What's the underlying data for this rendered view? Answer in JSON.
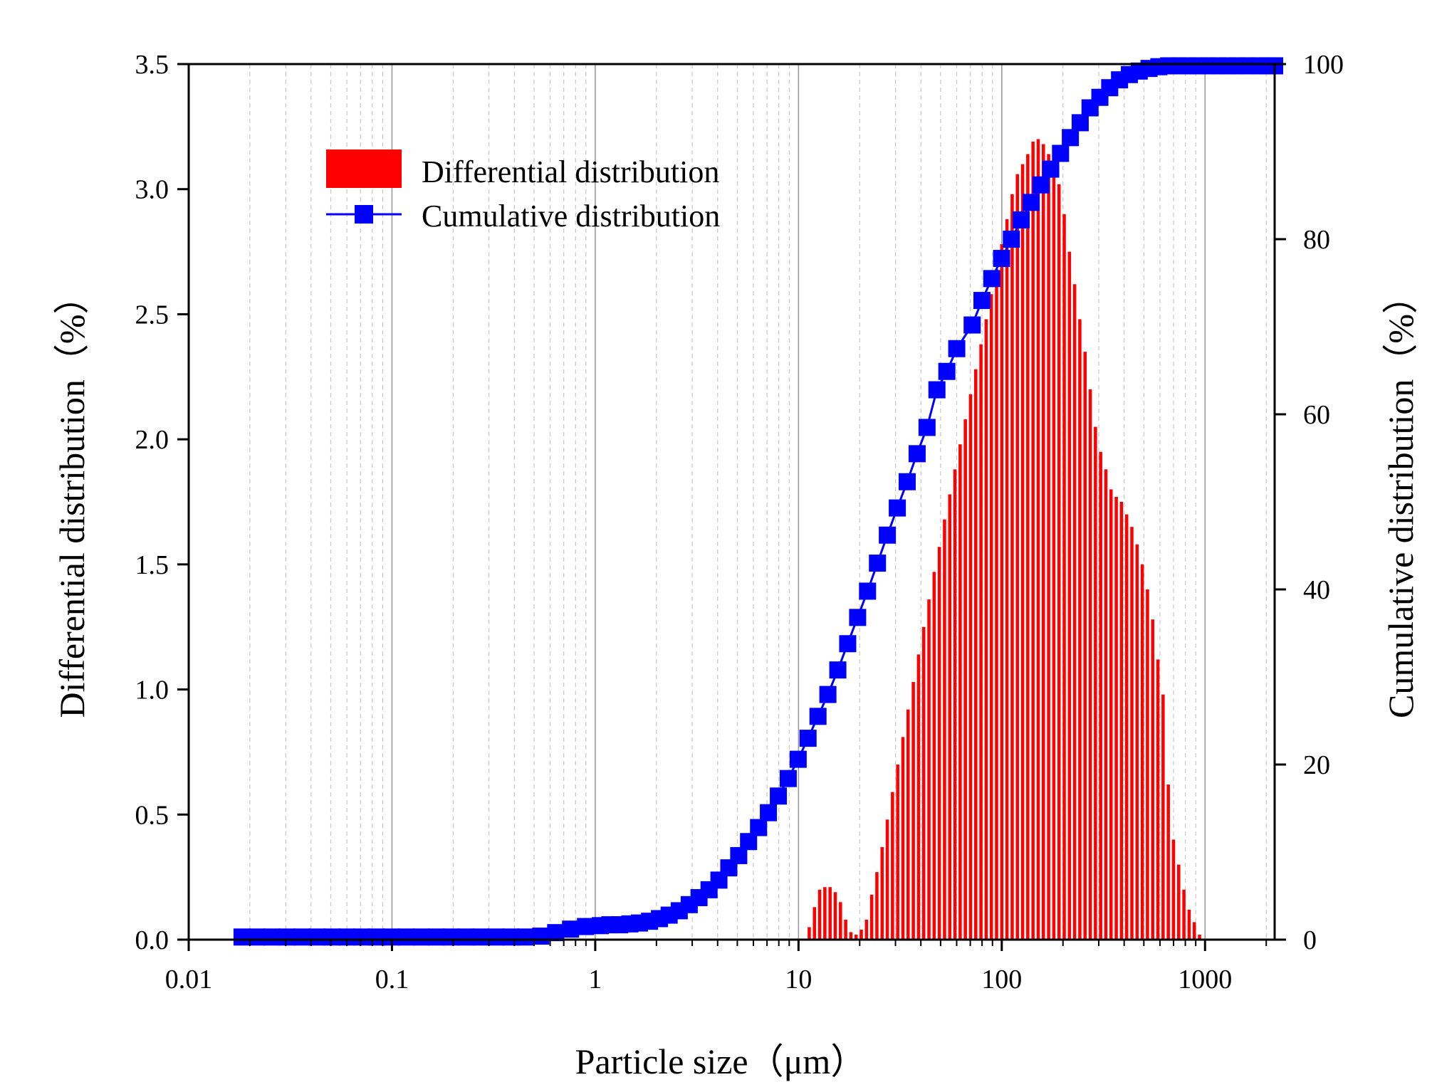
{
  "chart_data": {
    "type": "bar+line",
    "xscale": "log",
    "xlim": [
      0.01,
      2200
    ],
    "xlabel": "Particle size（μm）",
    "ylabel_left": "Differential distribution（%）",
    "ylabel_right": "Cumulative distribution（%）",
    "ylim_left": [
      0,
      3.5
    ],
    "ylim_right": [
      0,
      100
    ],
    "x_tick_labels": [
      "0.01",
      "0.1",
      "1",
      "10",
      "100",
      "1000"
    ],
    "y_left_tick_labels": [
      "0.0",
      "0.5",
      "1.0",
      "1.5",
      "2.0",
      "2.5",
      "3.0",
      "3.5"
    ],
    "y_right_tick_labels": [
      "0",
      "20",
      "40",
      "60",
      "80",
      "100"
    ],
    "grid": "vertical major and minor (log decades)",
    "legend": {
      "position": "top-left",
      "entries": [
        "Differential distribution",
        "Cumulative distribution"
      ]
    },
    "colors": {
      "bars": "#ff0000",
      "cumulative": "#0000ff"
    },
    "x_start": 0.0183,
    "log_step": 0.0256,
    "series": [
      {
        "name": "Differential distribution",
        "type": "bar",
        "values": [
          0,
          0,
          0,
          0,
          0,
          0,
          0,
          0,
          0,
          0,
          0,
          0,
          0,
          0,
          0,
          0,
          0,
          0,
          0,
          0,
          0,
          0,
          0,
          0,
          0,
          0,
          0,
          0,
          0,
          0,
          0,
          0,
          0,
          0,
          0,
          0,
          0,
          0,
          0,
          0,
          0,
          0,
          0,
          0,
          0,
          0,
          0,
          0,
          0,
          0,
          0,
          0,
          0,
          0,
          0,
          0,
          0,
          0,
          0,
          0,
          0,
          0,
          0,
          0,
          0,
          0,
          0,
          0,
          0,
          0,
          0,
          0,
          0,
          0,
          0,
          0,
          0,
          0,
          0,
          0,
          0,
          0,
          0,
          0,
          0,
          0,
          0,
          0,
          0,
          0,
          0,
          0,
          0,
          0,
          0,
          0,
          0,
          0,
          0,
          0,
          0,
          0,
          0,
          0,
          0,
          0,
          0,
          0,
          0,
          0.05,
          0.13,
          0.2,
          0.21,
          0.21,
          0.19,
          0.15,
          0.08,
          0.03,
          0.02,
          0.04,
          0.08,
          0.18,
          0.27,
          0.37,
          0.48,
          0.59,
          0.7,
          0.81,
          0.92,
          1.03,
          1.14,
          1.25,
          1.36,
          1.47,
          1.57,
          1.68,
          1.78,
          1.88,
          1.98,
          2.08,
          2.18,
          2.28,
          2.38,
          2.48,
          2.58,
          2.68,
          2.78,
          2.88,
          2.98,
          3.06,
          3.1,
          3.14,
          3.19,
          3.2,
          3.18,
          3.14,
          3.1,
          3.02,
          2.9,
          2.75,
          2.62,
          2.48,
          2.35,
          2.2,
          2.05,
          1.95,
          1.88,
          1.8,
          1.77,
          1.75,
          1.7,
          1.65,
          1.58,
          1.5,
          1.4,
          1.28,
          1.12,
          0.98,
          0.62,
          0.4,
          0.3,
          0.2,
          0.12,
          0.07,
          0.02
        ]
      },
      {
        "name": "Cumulative distribution",
        "type": "line",
        "marker_x": [
          0.0183,
          0.0217,
          0.0257,
          0.0305,
          0.0361,
          0.0427,
          0.0506,
          0.0599,
          0.0709,
          0.084,
          0.0995,
          0.1178,
          0.1395,
          0.1652,
          0.1956,
          0.2316,
          0.2743,
          0.3248,
          0.3846,
          0.4554,
          0.5393,
          0.6386,
          0.7562,
          0.8955,
          1.06,
          1.18,
          1.32,
          1.48,
          1.65,
          1.85,
          2.07,
          2.31,
          2.59,
          2.9,
          3.24,
          3.63,
          4.06,
          4.54,
          5.08,
          5.68,
          6.36,
          7.11,
          7.96,
          8.9,
          9.96,
          11.14,
          12.47,
          13.95,
          15.61,
          17.46,
          19.54,
          21.86,
          24.46,
          27.36,
          30.62,
          34.25,
          38.33,
          42.88,
          47.97,
          53.67,
          60.05,
          71.5,
          79.9,
          89.3,
          99.8,
          111.5,
          124.6,
          139.3,
          155.7,
          174.1,
          194.6,
          217.5,
          243.1,
          271.8,
          303.8,
          339.6,
          379.6,
          424.4,
          474.4,
          530.3,
          592.8,
          662.6,
          740.7,
          828,
          925.5,
          1035,
          1156,
          1293,
          1445,
          1615,
          1806,
          2018,
          2200
        ],
        "marker_y": [
          0.3,
          0.3,
          0.3,
          0.3,
          0.3,
          0.3,
          0.3,
          0.3,
          0.3,
          0.3,
          0.3,
          0.3,
          0.3,
          0.3,
          0.3,
          0.3,
          0.3,
          0.3,
          0.3,
          0.3,
          0.4,
          0.8,
          1.2,
          1.5,
          1.6,
          1.7,
          1.7,
          1.8,
          1.9,
          2.1,
          2.4,
          2.8,
          3.3,
          4,
          4.8,
          5.7,
          6.8,
          8.2,
          9.6,
          11.2,
          12.8,
          14.5,
          16.4,
          18.4,
          20.6,
          23,
          25.5,
          28,
          30.8,
          33.8,
          36.8,
          39.8,
          43,
          46.2,
          49.3,
          52.3,
          55.5,
          58.5,
          62.8,
          64.9,
          67.5,
          70.2,
          73,
          75.5,
          77.8,
          80,
          82.2,
          84.2,
          86.2,
          88,
          89.8,
          91.6,
          93.3,
          95,
          96.2,
          97.3,
          98.2,
          98.8,
          99.2,
          99.5,
          99.7,
          99.8,
          99.8,
          99.8,
          99.8,
          99.8,
          99.8,
          99.8,
          99.8,
          99.8,
          99.8,
          99.8,
          99.8
        ]
      }
    ]
  }
}
